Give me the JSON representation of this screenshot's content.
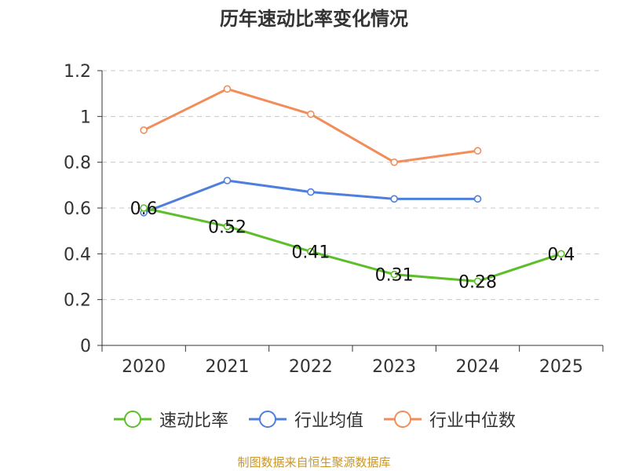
{
  "page": {
    "source": "制图数据来自恒生聚源数据库"
  },
  "chart_data": {
    "type": "line",
    "title": "历年速动比率变化情况",
    "xlabel": "",
    "ylabel": "",
    "categories": [
      "2020",
      "2021",
      "2022",
      "2023",
      "2024",
      "2025"
    ],
    "ylim": [
      0,
      1.2
    ],
    "yticks": [
      "0",
      "0.2",
      "0.4",
      "0.6",
      "0.8",
      "1",
      "1.2"
    ],
    "grid": true,
    "legend_position": "bottom",
    "series": [
      {
        "name": "速动比率",
        "color": "#5cbf2a",
        "values": [
          0.6,
          0.52,
          0.41,
          0.31,
          0.28,
          0.4
        ],
        "labels": [
          "0.6",
          "0.52",
          "0.41",
          "0.31",
          "0.28",
          "0.4"
        ]
      },
      {
        "name": "行业均值",
        "color": "#4f7fdc",
        "values": [
          0.58,
          0.72,
          0.67,
          0.64,
          0.64,
          null
        ]
      },
      {
        "name": "行业中位数",
        "color": "#f28d5a",
        "values": [
          0.94,
          1.12,
          1.01,
          0.8,
          0.85,
          null
        ]
      }
    ]
  }
}
